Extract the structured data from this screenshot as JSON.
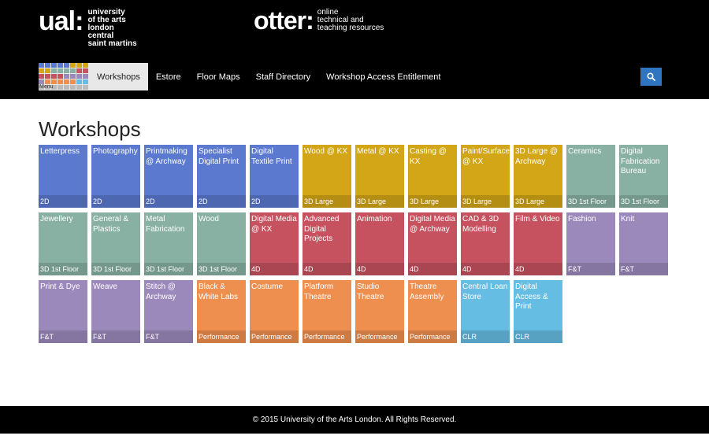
{
  "header": {
    "ual_mark": "ual:",
    "ual_lines": [
      "university",
      "of the arts",
      "london",
      "central",
      "saint martins"
    ],
    "otter_mark": "otter:",
    "otter_lines": [
      "online",
      "technical and",
      "teaching resources"
    ]
  },
  "nav": {
    "menu_label": "Menu",
    "menu_colors": [
      "#5b79cf",
      "#5b79cf",
      "#5b79cf",
      "#5b79cf",
      "#5b79cf",
      "#d2a617",
      "#d2a617",
      "#d2a617",
      "#d2a617",
      "#d2a617",
      "#89b1a3",
      "#89b1a3",
      "#89b1a3",
      "#89b1a3",
      "#c6525f",
      "#c6525f",
      "#c6525f",
      "#c6525f",
      "#c6525f",
      "#c6525f",
      "#9b89bc",
      "#9b89bc",
      "#9b89bc",
      "#9b89bc",
      "#9b89bc",
      "#ef8f4f",
      "#ef8f4f",
      "#ef8f4f",
      "#ef8f4f",
      "#ef8f4f",
      "#66bde4",
      "#66bde4",
      "#bbbbbb",
      "#bbbbbb",
      "#bbbbbb",
      "#bbbbbb",
      "#bbbbbb",
      "#bbbbbb",
      "#bbbbbb",
      "#bbbbbb"
    ],
    "items": [
      "Workshops",
      "Estore",
      "Floor Maps",
      "Staff Directory",
      "Workshop Access Entitlement"
    ],
    "active_index": 0,
    "search_icon": "search-icon"
  },
  "page_title": "Workshops",
  "colors": {
    "2D": "#5b79cf",
    "3D Large": "#d2a617",
    "3D 1st Floor": "#89b1a3",
    "4D": "#c6525f",
    "F&T": "#9b89bc",
    "Performance": "#ef8f4f",
    "CLR": "#66bde4"
  },
  "tiles": [
    {
      "name": "Letterpress",
      "cat": "2D",
      "cls": "c2d"
    },
    {
      "name": "Photography",
      "cat": "2D",
      "cls": "c2d"
    },
    {
      "name": "Printmaking @ Archway",
      "cat": "2D",
      "cls": "c2d"
    },
    {
      "name": "Specialist Digital Print",
      "cat": "2D",
      "cls": "c2d"
    },
    {
      "name": "Digital Textile Print",
      "cat": "2D",
      "cls": "c2d"
    },
    {
      "name": "Wood @ KX",
      "cat": "3D Large",
      "cls": "c3d"
    },
    {
      "name": "Metal @ KX",
      "cat": "3D Large",
      "cls": "c3d"
    },
    {
      "name": "Casting @ KX",
      "cat": "3D Large",
      "cls": "c3d"
    },
    {
      "name": "Paint/Surface @ KX",
      "cat": "3D Large",
      "cls": "c3d"
    },
    {
      "name": "3D Large @ Archway",
      "cat": "3D Large",
      "cls": "c3d"
    },
    {
      "name": "Ceramics",
      "cat": "3D 1st Floor",
      "cls": "c3f"
    },
    {
      "name": "Digital Fabrication Bureau",
      "cat": "3D 1st Floor",
      "cls": "c3f"
    },
    {
      "name": "Jewellery",
      "cat": "3D 1st Floor",
      "cls": "c3f"
    },
    {
      "name": "General & Plastics",
      "cat": "3D 1st Floor",
      "cls": "c3f"
    },
    {
      "name": "Metal Fabrication",
      "cat": "3D 1st Floor",
      "cls": "c3f"
    },
    {
      "name": "Wood",
      "cat": "3D 1st Floor",
      "cls": "c3f"
    },
    {
      "name": "Digital Media @ KX",
      "cat": "4D",
      "cls": "c4d"
    },
    {
      "name": "Advanced Digital Projects",
      "cat": "4D",
      "cls": "c4d"
    },
    {
      "name": "Animation",
      "cat": "4D",
      "cls": "c4d"
    },
    {
      "name": "Digital Media @ Archway",
      "cat": "4D",
      "cls": "c4d"
    },
    {
      "name": "CAD & 3D Modelling",
      "cat": "4D",
      "cls": "c4d"
    },
    {
      "name": "Film & Video",
      "cat": "4D",
      "cls": "c4d"
    },
    {
      "name": "Fashion",
      "cat": "F&T",
      "cls": "cft"
    },
    {
      "name": "Knit",
      "cat": "F&T",
      "cls": "cft"
    },
    {
      "name": "Print & Dye",
      "cat": "F&T",
      "cls": "cft"
    },
    {
      "name": "Weave",
      "cat": "F&T",
      "cls": "cft"
    },
    {
      "name": "Stitch @ Archway",
      "cat": "F&T",
      "cls": "cft"
    },
    {
      "name": "Black & White Labs",
      "cat": "Performance",
      "cls": "cpf"
    },
    {
      "name": "Costume",
      "cat": "Performance",
      "cls": "cpf"
    },
    {
      "name": "Platform Theatre",
      "cat": "Performance",
      "cls": "cpf"
    },
    {
      "name": "Studio Theatre",
      "cat": "Performance",
      "cls": "cpf"
    },
    {
      "name": "Theatre Assembly",
      "cat": "Performance",
      "cls": "cpf"
    },
    {
      "name": "Central Loan Store",
      "cat": "CLR",
      "cls": "ccl"
    },
    {
      "name": "Digital Access & Print",
      "cat": "CLR",
      "cls": "ccl"
    }
  ],
  "footer": "© 2015 University of the Arts London. All Rights Reserved."
}
